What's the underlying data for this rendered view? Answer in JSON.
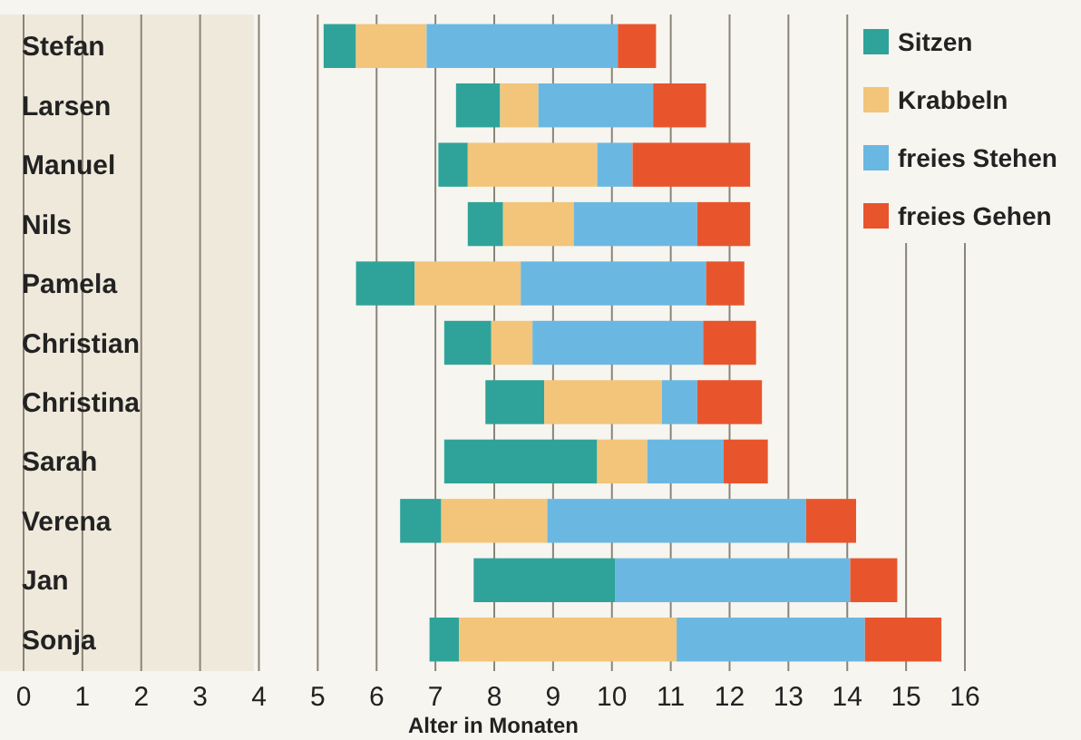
{
  "chart_data": {
    "type": "bar",
    "orientation": "horizontal",
    "xlabel": "Alter in Monaten",
    "categories": [
      "Stefan",
      "Larsen",
      "Manuel",
      "Nils",
      "Pamela",
      "Christian",
      "Christina",
      "Sarah",
      "Verena",
      "Jan",
      "Sonja"
    ],
    "series": [
      {
        "name": "Sitzen",
        "color": "#2fa39a",
        "base": [
          5.1,
          7.35,
          7.05,
          7.55,
          5.65,
          7.15,
          7.85,
          7.15,
          6.4,
          7.65,
          6.9
        ],
        "values": [
          0.55,
          0.75,
          0.5,
          0.6,
          1.0,
          0.8,
          1.0,
          2.6,
          0.7,
          2.4,
          0.5
        ]
      },
      {
        "name": "Krabbeln",
        "color": "#f2c57a",
        "base": [
          5.65,
          8.1,
          7.55,
          8.15,
          6.65,
          7.95,
          8.85,
          9.75,
          7.1,
          null,
          7.4
        ],
        "values": [
          1.2,
          0.65,
          2.2,
          1.2,
          1.8,
          0.7,
          2.0,
          0.85,
          1.8,
          null,
          3.7
        ]
      },
      {
        "name": "freies Stehen",
        "color": "#6ab8e2",
        "base": [
          6.85,
          8.75,
          9.75,
          9.35,
          8.45,
          8.65,
          10.85,
          10.6,
          8.9,
          10.05,
          11.1
        ],
        "values": [
          3.25,
          1.95,
          0.6,
          2.1,
          3.15,
          2.9,
          0.6,
          1.3,
          4.4,
          4.0,
          3.2
        ]
      },
      {
        "name": "freies Gehen",
        "color": "#e8552d",
        "base": [
          10.1,
          10.7,
          10.35,
          11.45,
          11.6,
          11.55,
          11.45,
          11.9,
          13.3,
          14.05,
          14.3
        ],
        "values": [
          0.65,
          0.9,
          2.0,
          0.9,
          0.65,
          0.9,
          1.1,
          0.75,
          0.85,
          0.8,
          1.3
        ]
      }
    ],
    "xlim": [
      0,
      16
    ],
    "xticks": [
      0,
      1,
      2,
      3,
      4,
      5,
      6,
      7,
      8,
      9,
      10,
      11,
      12,
      13,
      14,
      15,
      16
    ],
    "grid": "x",
    "legend": "top right"
  }
}
